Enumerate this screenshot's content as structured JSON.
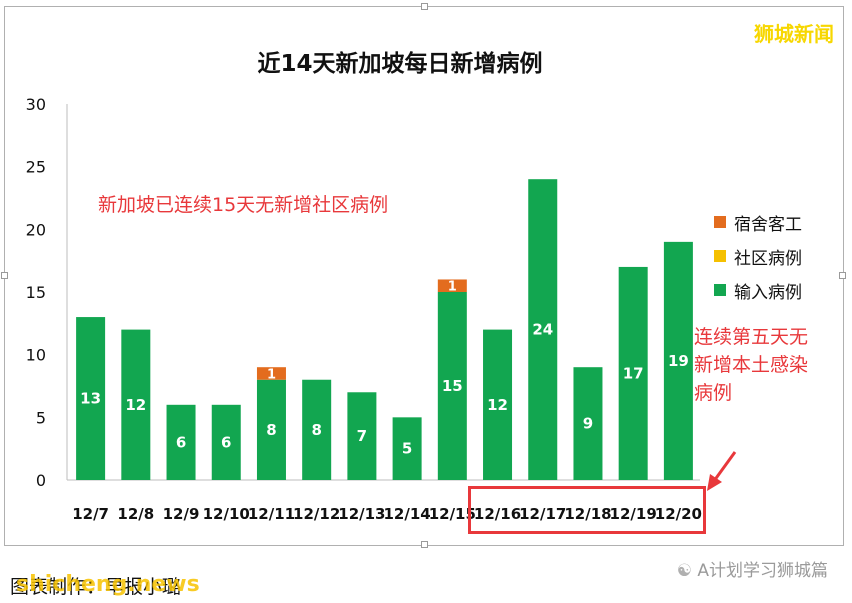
{
  "brand": "狮城新闻",
  "annotations": {
    "no_community": "新加坡已连续15天无新增社区病例",
    "no_local_line1": "连续第五天无",
    "no_local_line2": "新增本土感染",
    "no_local_line3": "病例"
  },
  "footer": {
    "caption": "图表制作：早报小璐",
    "watermark": "shicheng.news",
    "wechat": "A计划学习狮城篇"
  },
  "colors": {
    "imported": "#12a650",
    "community": "#f5c000",
    "dormitory": "#e36c1e",
    "accent_red": "#e8383b"
  },
  "chart_data": {
    "type": "bar",
    "title": "近14天新加坡每日新增病例",
    "categories": [
      "12/7",
      "12/8",
      "12/9",
      "12/10",
      "12/11",
      "12/12",
      "12/13",
      "12/14",
      "12/15",
      "12/16",
      "12/17",
      "12/18",
      "12/19",
      "12/20"
    ],
    "series": [
      {
        "name": "输入病例",
        "values": [
          13,
          12,
          6,
          6,
          8,
          8,
          7,
          5,
          15,
          12,
          24,
          9,
          17,
          19
        ]
      },
      {
        "name": "社区病例",
        "values": [
          0,
          0,
          0,
          0,
          0,
          0,
          0,
          0,
          0,
          0,
          0,
          0,
          0,
          0
        ]
      },
      {
        "name": "宿舍客工",
        "values": [
          0,
          0,
          0,
          0,
          1,
          0,
          0,
          0,
          1,
          0,
          0,
          0,
          0,
          0
        ]
      }
    ],
    "stacked": true,
    "ylim": [
      0,
      30
    ],
    "yticks": [
      0,
      5,
      10,
      15,
      20,
      25,
      30
    ],
    "grid": false,
    "legend": "right",
    "legend_order": [
      "宿舍客工",
      "社区病例",
      "输入病例"
    ]
  }
}
